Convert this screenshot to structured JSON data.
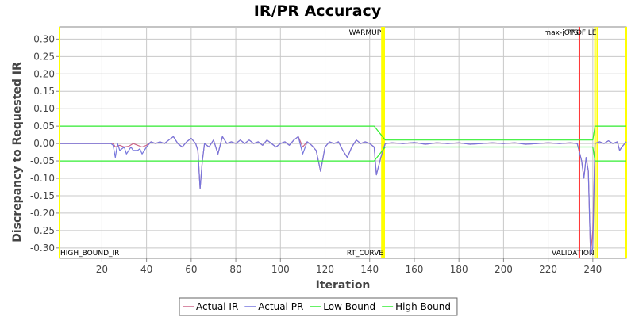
{
  "chart_data": {
    "type": "line",
    "title": "IR/PR Accuracy",
    "xlabel": "Iteration",
    "ylabel": "Discrepancy to Requested IR",
    "xlim": [
      1,
      255
    ],
    "ylim": [
      -0.33,
      0.335
    ],
    "xticks": [
      20,
      40,
      60,
      80,
      100,
      120,
      140,
      160,
      180,
      200,
      220,
      240
    ],
    "yticks": [
      0.3,
      0.25,
      0.2,
      0.15,
      0.1,
      0.05,
      0.0,
      -0.05,
      -0.1,
      -0.15,
      -0.2,
      -0.25,
      -0.3
    ],
    "grid": true,
    "legend_position": "bottom",
    "series": [
      {
        "name": "Actual IR",
        "color": "#cc6688",
        "points": [
          [
            1,
            0
          ],
          [
            25,
            0
          ],
          [
            26,
            -0.01
          ],
          [
            28,
            -0.005
          ],
          [
            30,
            -0.01
          ],
          [
            32,
            -0.008
          ],
          [
            34,
            0
          ],
          [
            36,
            -0.005
          ],
          [
            38,
            -0.01
          ],
          [
            40,
            -0.005
          ],
          [
            42,
            0.005
          ],
          [
            44,
            0
          ],
          [
            46,
            0.005
          ],
          [
            48,
            0
          ],
          [
            50,
            0.01
          ],
          [
            52,
            0.02
          ],
          [
            54,
            0
          ],
          [
            56,
            -0.01
          ],
          [
            58,
            0.005
          ],
          [
            60,
            0.015
          ],
          [
            62,
            0
          ],
          [
            63,
            -0.02
          ],
          [
            64,
            -0.13
          ],
          [
            65,
            -0.05
          ],
          [
            66,
            0
          ],
          [
            68,
            -0.01
          ],
          [
            70,
            0.01
          ],
          [
            72,
            -0.03
          ],
          [
            74,
            0.02
          ],
          [
            76,
            0
          ],
          [
            78,
            0.005
          ],
          [
            80,
            0
          ],
          [
            82,
            0.01
          ],
          [
            84,
            0
          ],
          [
            86,
            0.01
          ],
          [
            88,
            0
          ],
          [
            90,
            0.005
          ],
          [
            92,
            -0.005
          ],
          [
            94,
            0.01
          ],
          [
            96,
            0
          ],
          [
            98,
            -0.01
          ],
          [
            100,
            0
          ],
          [
            102,
            0.005
          ],
          [
            104,
            -0.005
          ],
          [
            106,
            0.01
          ],
          [
            108,
            0.02
          ],
          [
            110,
            -0.01
          ],
          [
            112,
            0.005
          ],
          [
            114,
            -0.005
          ],
          [
            116,
            -0.02
          ],
          [
            118,
            -0.08
          ],
          [
            120,
            -0.01
          ],
          [
            122,
            0.005
          ],
          [
            124,
            0
          ],
          [
            126,
            0.005
          ],
          [
            128,
            -0.02
          ],
          [
            130,
            -0.04
          ],
          [
            132,
            -0.01
          ],
          [
            134,
            0.01
          ],
          [
            136,
            0
          ],
          [
            138,
            0.005
          ],
          [
            140,
            0
          ],
          [
            142,
            -0.01
          ],
          [
            143,
            -0.09
          ],
          [
            145,
            -0.04
          ],
          [
            147,
            0
          ],
          [
            150,
            0.002
          ],
          [
            155,
            0
          ],
          [
            160,
            0.003
          ],
          [
            165,
            -0.002
          ],
          [
            170,
            0.002
          ],
          [
            175,
            0
          ],
          [
            180,
            0.002
          ],
          [
            185,
            -0.002
          ],
          [
            190,
            0
          ],
          [
            195,
            0.002
          ],
          [
            200,
            0
          ],
          [
            205,
            0.002
          ],
          [
            210,
            -0.002
          ],
          [
            215,
            0
          ],
          [
            220,
            0.002
          ],
          [
            225,
            0
          ],
          [
            230,
            0.002
          ],
          [
            233,
            0
          ],
          [
            235,
            -0.05
          ],
          [
            236,
            -0.1
          ],
          [
            237,
            -0.04
          ],
          [
            238,
            -0.08
          ],
          [
            239,
            -0.32
          ],
          [
            240,
            -0.25
          ],
          [
            241,
            0
          ],
          [
            243,
            0.005
          ],
          [
            245,
            0
          ],
          [
            247,
            0.008
          ],
          [
            249,
            0
          ],
          [
            251,
            0.005
          ],
          [
            252,
            -0.02
          ],
          [
            253,
            -0.01
          ],
          [
            255,
            0.005
          ]
        ]
      },
      {
        "name": "Actual PR",
        "color": "#7777dd",
        "points": [
          [
            1,
            0
          ],
          [
            24,
            0
          ],
          [
            25,
            -0.005
          ],
          [
            26,
            -0.04
          ],
          [
            27,
            0
          ],
          [
            28,
            -0.02
          ],
          [
            30,
            -0.01
          ],
          [
            31,
            -0.03
          ],
          [
            33,
            -0.01
          ],
          [
            34,
            -0.02
          ],
          [
            36,
            -0.02
          ],
          [
            37,
            -0.015
          ],
          [
            38,
            -0.03
          ],
          [
            40,
            -0.01
          ],
          [
            42,
            0.005
          ],
          [
            44,
            0
          ],
          [
            46,
            0.005
          ],
          [
            48,
            0
          ],
          [
            50,
            0.01
          ],
          [
            52,
            0.02
          ],
          [
            54,
            0
          ],
          [
            56,
            -0.01
          ],
          [
            58,
            0.005
          ],
          [
            60,
            0.015
          ],
          [
            62,
            0
          ],
          [
            63,
            -0.02
          ],
          [
            64,
            -0.13
          ],
          [
            65,
            -0.05
          ],
          [
            66,
            0
          ],
          [
            68,
            -0.01
          ],
          [
            70,
            0.01
          ],
          [
            72,
            -0.03
          ],
          [
            74,
            0.02
          ],
          [
            76,
            0
          ],
          [
            78,
            0.005
          ],
          [
            80,
            0
          ],
          [
            82,
            0.01
          ],
          [
            84,
            0
          ],
          [
            86,
            0.01
          ],
          [
            88,
            0
          ],
          [
            90,
            0.005
          ],
          [
            92,
            -0.005
          ],
          [
            94,
            0.01
          ],
          [
            96,
            0
          ],
          [
            98,
            -0.01
          ],
          [
            100,
            0
          ],
          [
            102,
            0.005
          ],
          [
            104,
            -0.005
          ],
          [
            106,
            0.01
          ],
          [
            108,
            0.02
          ],
          [
            110,
            -0.03
          ],
          [
            112,
            0.005
          ],
          [
            114,
            -0.005
          ],
          [
            116,
            -0.02
          ],
          [
            118,
            -0.08
          ],
          [
            120,
            -0.01
          ],
          [
            122,
            0.005
          ],
          [
            124,
            0
          ],
          [
            126,
            0.005
          ],
          [
            128,
            -0.02
          ],
          [
            130,
            -0.04
          ],
          [
            132,
            -0.01
          ],
          [
            134,
            0.01
          ],
          [
            136,
            0
          ],
          [
            138,
            0.005
          ],
          [
            140,
            0
          ],
          [
            142,
            -0.01
          ],
          [
            143,
            -0.09
          ],
          [
            145,
            -0.04
          ],
          [
            147,
            0
          ],
          [
            150,
            0.002
          ],
          [
            155,
            0
          ],
          [
            160,
            0.003
          ],
          [
            165,
            -0.002
          ],
          [
            170,
            0.002
          ],
          [
            175,
            0
          ],
          [
            180,
            0.002
          ],
          [
            185,
            -0.002
          ],
          [
            190,
            0
          ],
          [
            195,
            0.002
          ],
          [
            200,
            0
          ],
          [
            205,
            0.002
          ],
          [
            210,
            -0.002
          ],
          [
            215,
            0
          ],
          [
            220,
            0.002
          ],
          [
            225,
            0
          ],
          [
            230,
            0.002
          ],
          [
            233,
            0
          ],
          [
            235,
            -0.05
          ],
          [
            236,
            -0.1
          ],
          [
            237,
            -0.04
          ],
          [
            238,
            -0.08
          ],
          [
            239,
            -0.32
          ],
          [
            240,
            -0.3
          ],
          [
            241,
            0
          ],
          [
            243,
            0.005
          ],
          [
            245,
            0
          ],
          [
            247,
            0.008
          ],
          [
            249,
            0
          ],
          [
            251,
            0.005
          ],
          [
            252,
            -0.02
          ],
          [
            253,
            -0.01
          ],
          [
            255,
            0.005
          ]
        ]
      },
      {
        "name": "Low Bound",
        "color": "#33ee33",
        "points": [
          [
            1,
            -0.05
          ],
          [
            142,
            -0.05
          ],
          [
            147,
            -0.01
          ],
          [
            234,
            -0.01
          ],
          [
            240,
            -0.01
          ],
          [
            241,
            -0.05
          ],
          [
            255,
            -0.05
          ]
        ]
      },
      {
        "name": "High Bound",
        "color": "#33ee33",
        "points": [
          [
            1,
            0.05
          ],
          [
            142,
            0.05
          ],
          [
            147,
            0.01
          ],
          [
            234,
            0.01
          ],
          [
            240,
            0.01
          ],
          [
            241,
            0.05
          ],
          [
            255,
            0.05
          ]
        ]
      }
    ],
    "markers": [
      {
        "x": 1,
        "color": "#ffff00",
        "label": "HIGH_BOUND_IR",
        "label_pos": "bottom"
      },
      {
        "x": 145.5,
        "color": "#ffff00",
        "label": "WARMUP",
        "label_pos": "top"
      },
      {
        "x": 146.5,
        "color": "#ffff00",
        "label": "RT_CURVE",
        "label_pos": "bottom"
      },
      {
        "x": 234,
        "color": "#ff3333",
        "label": "max-jOPS",
        "label_pos": "top"
      },
      {
        "x": 241,
        "color": "#ffff00",
        "label": "VALIDATION",
        "label_pos": "bottom"
      },
      {
        "x": 242,
        "color": "#ffff00",
        "label": "PROFILE",
        "label_pos": "top"
      },
      {
        "x": 255,
        "color": "#ffff00",
        "label": "",
        "label_pos": "top"
      }
    ]
  }
}
